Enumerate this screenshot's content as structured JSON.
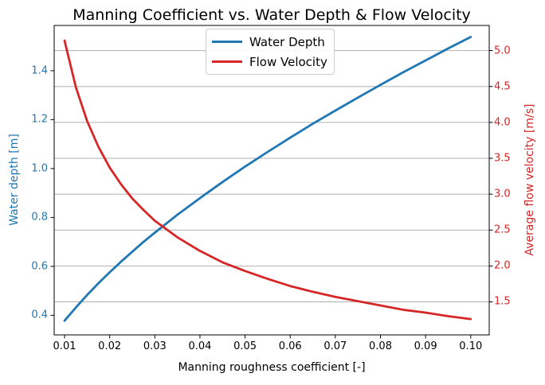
{
  "title": "Manning Coefficient vs. Water Depth & Flow Velocity",
  "axes": {
    "x": {
      "label": "Manning roughness coefficient [-]",
      "tick_labels": [
        "0.01",
        "0.02",
        "0.03",
        "0.04",
        "0.05",
        "0.06",
        "0.07",
        "0.08",
        "0.09",
        "0.10"
      ]
    },
    "y_left": {
      "label": "Water depth [m]",
      "tick_labels": [
        "0.4",
        "0.6",
        "0.8",
        "1.0",
        "1.2",
        "1.4"
      ],
      "color": "#1f77b4"
    },
    "y_right": {
      "label": "Average flow velocity [m/s]",
      "tick_labels": [
        "1.5",
        "2.0",
        "2.5",
        "3.0",
        "3.5",
        "4.0",
        "4.5",
        "5.0"
      ],
      "color": "#d62728"
    }
  },
  "legend": {
    "items": [
      {
        "label": "Water Depth",
        "color": "#1f77b4"
      },
      {
        "label": "Flow Velocity",
        "color": "#d62728"
      }
    ],
    "position": "upper center"
  },
  "colors": {
    "water_depth": "#1f77b4",
    "flow_velocity": "#d62728",
    "grid": "#b0b0b0",
    "spine": "#000000"
  },
  "chart_data": {
    "type": "line",
    "title": "Manning Coefficient vs. Water Depth & Flow Velocity",
    "xlabel": "Manning roughness coefficient [-]",
    "ylabel_left": "Water depth [m]",
    "ylabel_right": "Average flow velocity [m/s]",
    "x": [
      0.01,
      0.0125,
      0.015,
      0.0175,
      0.02,
      0.0225,
      0.025,
      0.0275,
      0.03,
      0.035,
      0.04,
      0.045,
      0.05,
      0.055,
      0.06,
      0.065,
      0.07,
      0.075,
      0.08,
      0.085,
      0.09,
      0.095,
      0.1
    ],
    "series": [
      {
        "name": "Water Depth",
        "axis": "left",
        "color": "#1f77b4",
        "values": [
          0.378,
          0.432,
          0.483,
          0.531,
          0.576,
          0.619,
          0.66,
          0.7,
          0.738,
          0.811,
          0.879,
          0.945,
          1.008,
          1.068,
          1.126,
          1.183,
          1.237,
          1.29,
          1.342,
          1.393,
          1.442,
          1.491,
          1.538
        ]
      },
      {
        "name": "Flow Velocity",
        "axis": "right",
        "color": "#d62728",
        "values": [
          5.14,
          4.49,
          4.02,
          3.66,
          3.37,
          3.14,
          2.94,
          2.78,
          2.63,
          2.4,
          2.21,
          2.05,
          1.93,
          1.82,
          1.72,
          1.64,
          1.57,
          1.51,
          1.45,
          1.39,
          1.35,
          1.3,
          1.26
        ]
      }
    ],
    "xlim": [
      0.0077,
      0.1041
    ],
    "ylim_left": [
      0.32,
      1.585
    ],
    "ylim_right": [
      1.04,
      5.35
    ],
    "x_ticks": [
      0.01,
      0.02,
      0.03,
      0.04,
      0.05,
      0.06,
      0.07,
      0.08,
      0.09,
      0.1
    ],
    "y_left_ticks": [
      0.4,
      0.6,
      0.8,
      1.0,
      1.2,
      1.4
    ],
    "y_right_ticks": [
      1.5,
      2.0,
      2.5,
      3.0,
      3.5,
      4.0,
      4.5,
      5.0
    ],
    "grid": "horizontal gridlines at right-axis ticks",
    "legend_position": "upper center"
  }
}
